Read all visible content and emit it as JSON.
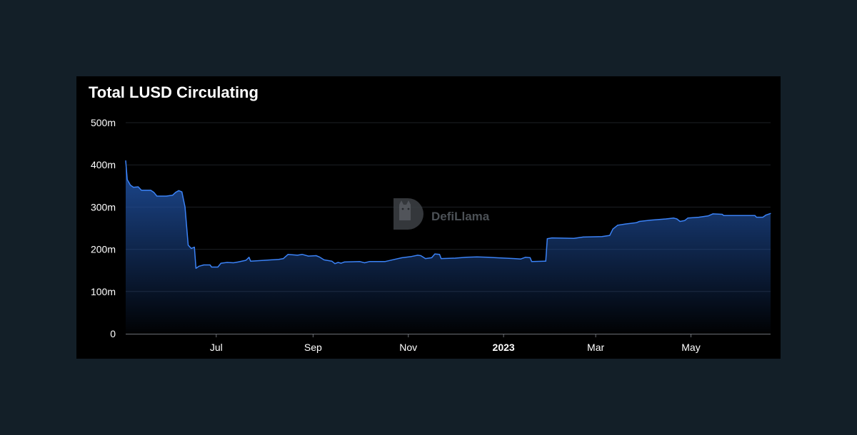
{
  "chart_data": {
    "type": "area",
    "title": "Total LUSD Circulating",
    "xlabel": "",
    "ylabel": "",
    "ylim": [
      0,
      500000000
    ],
    "y_ticks": [
      {
        "value": 0,
        "label": "0"
      },
      {
        "value": 100000000,
        "label": "100m"
      },
      {
        "value": 200000000,
        "label": "200m"
      },
      {
        "value": 300000000,
        "label": "300m"
      },
      {
        "value": 400000000,
        "label": "400m"
      },
      {
        "value": 500000000,
        "label": "500m"
      }
    ],
    "x_range": [
      "2022-05-04",
      "2023-06-21"
    ],
    "x_ticks": [
      {
        "value": "2022-07-01",
        "label": "Jul",
        "bold": false
      },
      {
        "value": "2022-09-01",
        "label": "Sep",
        "bold": false
      },
      {
        "value": "2022-11-01",
        "label": "Nov",
        "bold": false
      },
      {
        "value": "2023-01-01",
        "label": "2023",
        "bold": true
      },
      {
        "value": "2023-03-01",
        "label": "Mar",
        "bold": false
      },
      {
        "value": "2023-05-01",
        "label": "May",
        "bold": false
      }
    ],
    "grid": true,
    "legend": "none",
    "series": [
      {
        "color": "#3b82f6",
        "points": [
          [
            "2022-05-04",
            410000000
          ],
          [
            "2022-05-05",
            365000000
          ],
          [
            "2022-05-07",
            352000000
          ],
          [
            "2022-05-09",
            347000000
          ],
          [
            "2022-05-12",
            348000000
          ],
          [
            "2022-05-14",
            340000000
          ],
          [
            "2022-05-20",
            340000000
          ],
          [
            "2022-05-22",
            335000000
          ],
          [
            "2022-05-24",
            326000000
          ],
          [
            "2022-05-30",
            326000000
          ],
          [
            "2022-06-03",
            328000000
          ],
          [
            "2022-06-05",
            335000000
          ],
          [
            "2022-06-07",
            339000000
          ],
          [
            "2022-06-09",
            336000000
          ],
          [
            "2022-06-11",
            300000000
          ],
          [
            "2022-06-13",
            210000000
          ],
          [
            "2022-06-15",
            202000000
          ],
          [
            "2022-06-17",
            205000000
          ],
          [
            "2022-06-18",
            155000000
          ],
          [
            "2022-06-20",
            160000000
          ],
          [
            "2022-06-23",
            163000000
          ],
          [
            "2022-06-27",
            163000000
          ],
          [
            "2022-06-28",
            158000000
          ],
          [
            "2022-07-02",
            158000000
          ],
          [
            "2022-07-04",
            167000000
          ],
          [
            "2022-07-08",
            169000000
          ],
          [
            "2022-07-12",
            168000000
          ],
          [
            "2022-07-15",
            170000000
          ],
          [
            "2022-07-20",
            174000000
          ],
          [
            "2022-07-22",
            181000000
          ],
          [
            "2022-07-23",
            172000000
          ],
          [
            "2022-08-01",
            174000000
          ],
          [
            "2022-08-10",
            176000000
          ],
          [
            "2022-08-13",
            178000000
          ],
          [
            "2022-08-16",
            188000000
          ],
          [
            "2022-08-22",
            186000000
          ],
          [
            "2022-08-25",
            188000000
          ],
          [
            "2022-08-29",
            184000000
          ],
          [
            "2022-09-03",
            185000000
          ],
          [
            "2022-09-05",
            182000000
          ],
          [
            "2022-09-08",
            175000000
          ],
          [
            "2022-09-13",
            172000000
          ],
          [
            "2022-09-15",
            166000000
          ],
          [
            "2022-09-17",
            169000000
          ],
          [
            "2022-09-19",
            167000000
          ],
          [
            "2022-09-21",
            170000000
          ],
          [
            "2022-10-01",
            171000000
          ],
          [
            "2022-10-04",
            168000000
          ],
          [
            "2022-10-07",
            171000000
          ],
          [
            "2022-10-17",
            171000000
          ],
          [
            "2022-10-23",
            176000000
          ],
          [
            "2022-10-28",
            180000000
          ],
          [
            "2022-11-03",
            183000000
          ],
          [
            "2022-11-07",
            186000000
          ],
          [
            "2022-11-09",
            185000000
          ],
          [
            "2022-11-12",
            178000000
          ],
          [
            "2022-11-16",
            180000000
          ],
          [
            "2022-11-18",
            189000000
          ],
          [
            "2022-11-21",
            188000000
          ],
          [
            "2022-11-22",
            178000000
          ],
          [
            "2022-12-01",
            179000000
          ],
          [
            "2022-12-08",
            181000000
          ],
          [
            "2022-12-15",
            182000000
          ],
          [
            "2022-12-22",
            181000000
          ],
          [
            "2022-12-27",
            180000000
          ],
          [
            "2023-01-08",
            178000000
          ],
          [
            "2023-01-12",
            177000000
          ],
          [
            "2023-01-15",
            181000000
          ],
          [
            "2023-01-18",
            180000000
          ],
          [
            "2023-01-19",
            171000000
          ],
          [
            "2023-01-28",
            172000000
          ],
          [
            "2023-01-29",
            225000000
          ],
          [
            "2023-02-01",
            227000000
          ],
          [
            "2023-02-15",
            226000000
          ],
          [
            "2023-02-21",
            229000000
          ],
          [
            "2023-03-05",
            230000000
          ],
          [
            "2023-03-10",
            233000000
          ],
          [
            "2023-03-12",
            248000000
          ],
          [
            "2023-03-15",
            257000000
          ],
          [
            "2023-03-20",
            260000000
          ],
          [
            "2023-03-27",
            263000000
          ],
          [
            "2023-03-29",
            266000000
          ],
          [
            "2023-04-05",
            269000000
          ],
          [
            "2023-04-15",
            272000000
          ],
          [
            "2023-04-20",
            274000000
          ],
          [
            "2023-04-22",
            272000000
          ],
          [
            "2023-04-24",
            266000000
          ],
          [
            "2023-04-27",
            268000000
          ],
          [
            "2023-04-29",
            274000000
          ],
          [
            "2023-05-06",
            276000000
          ],
          [
            "2023-05-12",
            279000000
          ],
          [
            "2023-05-15",
            284000000
          ],
          [
            "2023-05-21",
            283000000
          ],
          [
            "2023-05-22",
            280000000
          ],
          [
            "2023-06-05",
            280000000
          ],
          [
            "2023-06-11",
            280000000
          ],
          [
            "2023-06-12",
            276000000
          ],
          [
            "2023-06-16",
            276000000
          ],
          [
            "2023-06-18",
            281000000
          ],
          [
            "2023-06-21",
            285000000
          ]
        ]
      }
    ]
  },
  "watermark": {
    "brand": "DefiLlama",
    "logo_letter": "D",
    "icon": "llama-logo-icon"
  }
}
